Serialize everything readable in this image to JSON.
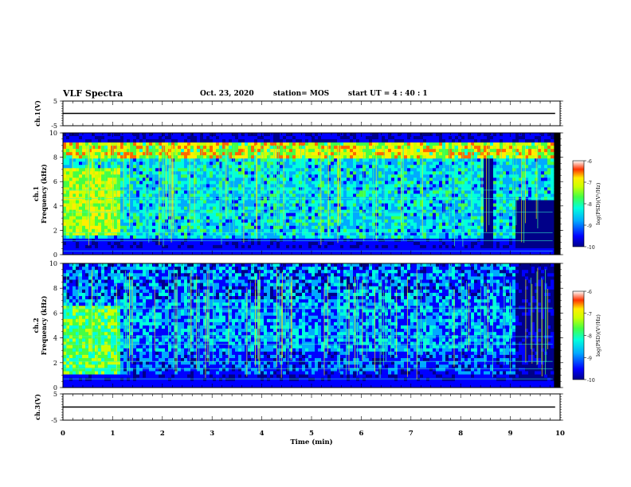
{
  "header": {
    "title": "VLF Spectra",
    "date": "Oct. 23, 2020",
    "station": "station= MOS",
    "start": "start  UT =   4 : 40 : 1"
  },
  "chart_data": [
    {
      "type": "line",
      "panel": "ch1-waveform",
      "ylabel": "ch.1(V)",
      "ylim": [
        -5,
        5
      ],
      "yticks": [
        "5",
        "-5"
      ],
      "xlim": [
        0,
        10
      ],
      "series": [
        {
          "x": [
            0,
            9.9
          ],
          "y": [
            0,
            0
          ]
        }
      ]
    },
    {
      "type": "heatmap",
      "panel": "ch1-spectrogram",
      "ylabel": "ch.1\nFrequency (kHz)",
      "ylim": [
        0,
        10
      ],
      "yticks": [
        "0",
        "2",
        "4",
        "6",
        "8",
        "10"
      ],
      "xlim": [
        0,
        10
      ],
      "colorbar": {
        "label": "log(PSD)(V²/Hz)",
        "range": [
          -10,
          -6
        ],
        "ticks": [
          "-6",
          "-7",
          "-8",
          "-9",
          "-10"
        ]
      }
    },
    {
      "type": "heatmap",
      "panel": "ch2-spectrogram",
      "ylabel": "ch.2\nFrequency (kHz)",
      "ylim": [
        0,
        10
      ],
      "yticks": [
        "0",
        "2",
        "4",
        "6",
        "8",
        "10"
      ],
      "xlim": [
        0,
        10
      ],
      "colorbar": {
        "label": "log(PSD)(V²/Hz)",
        "range": [
          -10,
          -6
        ],
        "ticks": [
          "-6",
          "-7",
          "-8",
          "-9",
          "-10"
        ]
      }
    },
    {
      "type": "line",
      "panel": "ch3-waveform",
      "ylabel": "ch.3(V)",
      "ylim": [
        -5,
        5
      ],
      "yticks": [
        "5",
        "-5"
      ],
      "xlim": [
        0,
        10
      ],
      "xlabel": "Time (min)",
      "xticks": [
        "0",
        "1",
        "2",
        "3",
        "4",
        "5",
        "6",
        "7",
        "8",
        "9",
        "10"
      ],
      "series": [
        {
          "x": [
            0,
            9.9
          ],
          "y": [
            0,
            0
          ]
        }
      ]
    }
  ],
  "colors": {
    "colormap": [
      "#000088",
      "#0000ff",
      "#00aaff",
      "#00ffdd",
      "#44ff44",
      "#ccff00",
      "#ffee00",
      "#ff6600",
      "#ee0000",
      "#ffffff"
    ]
  }
}
